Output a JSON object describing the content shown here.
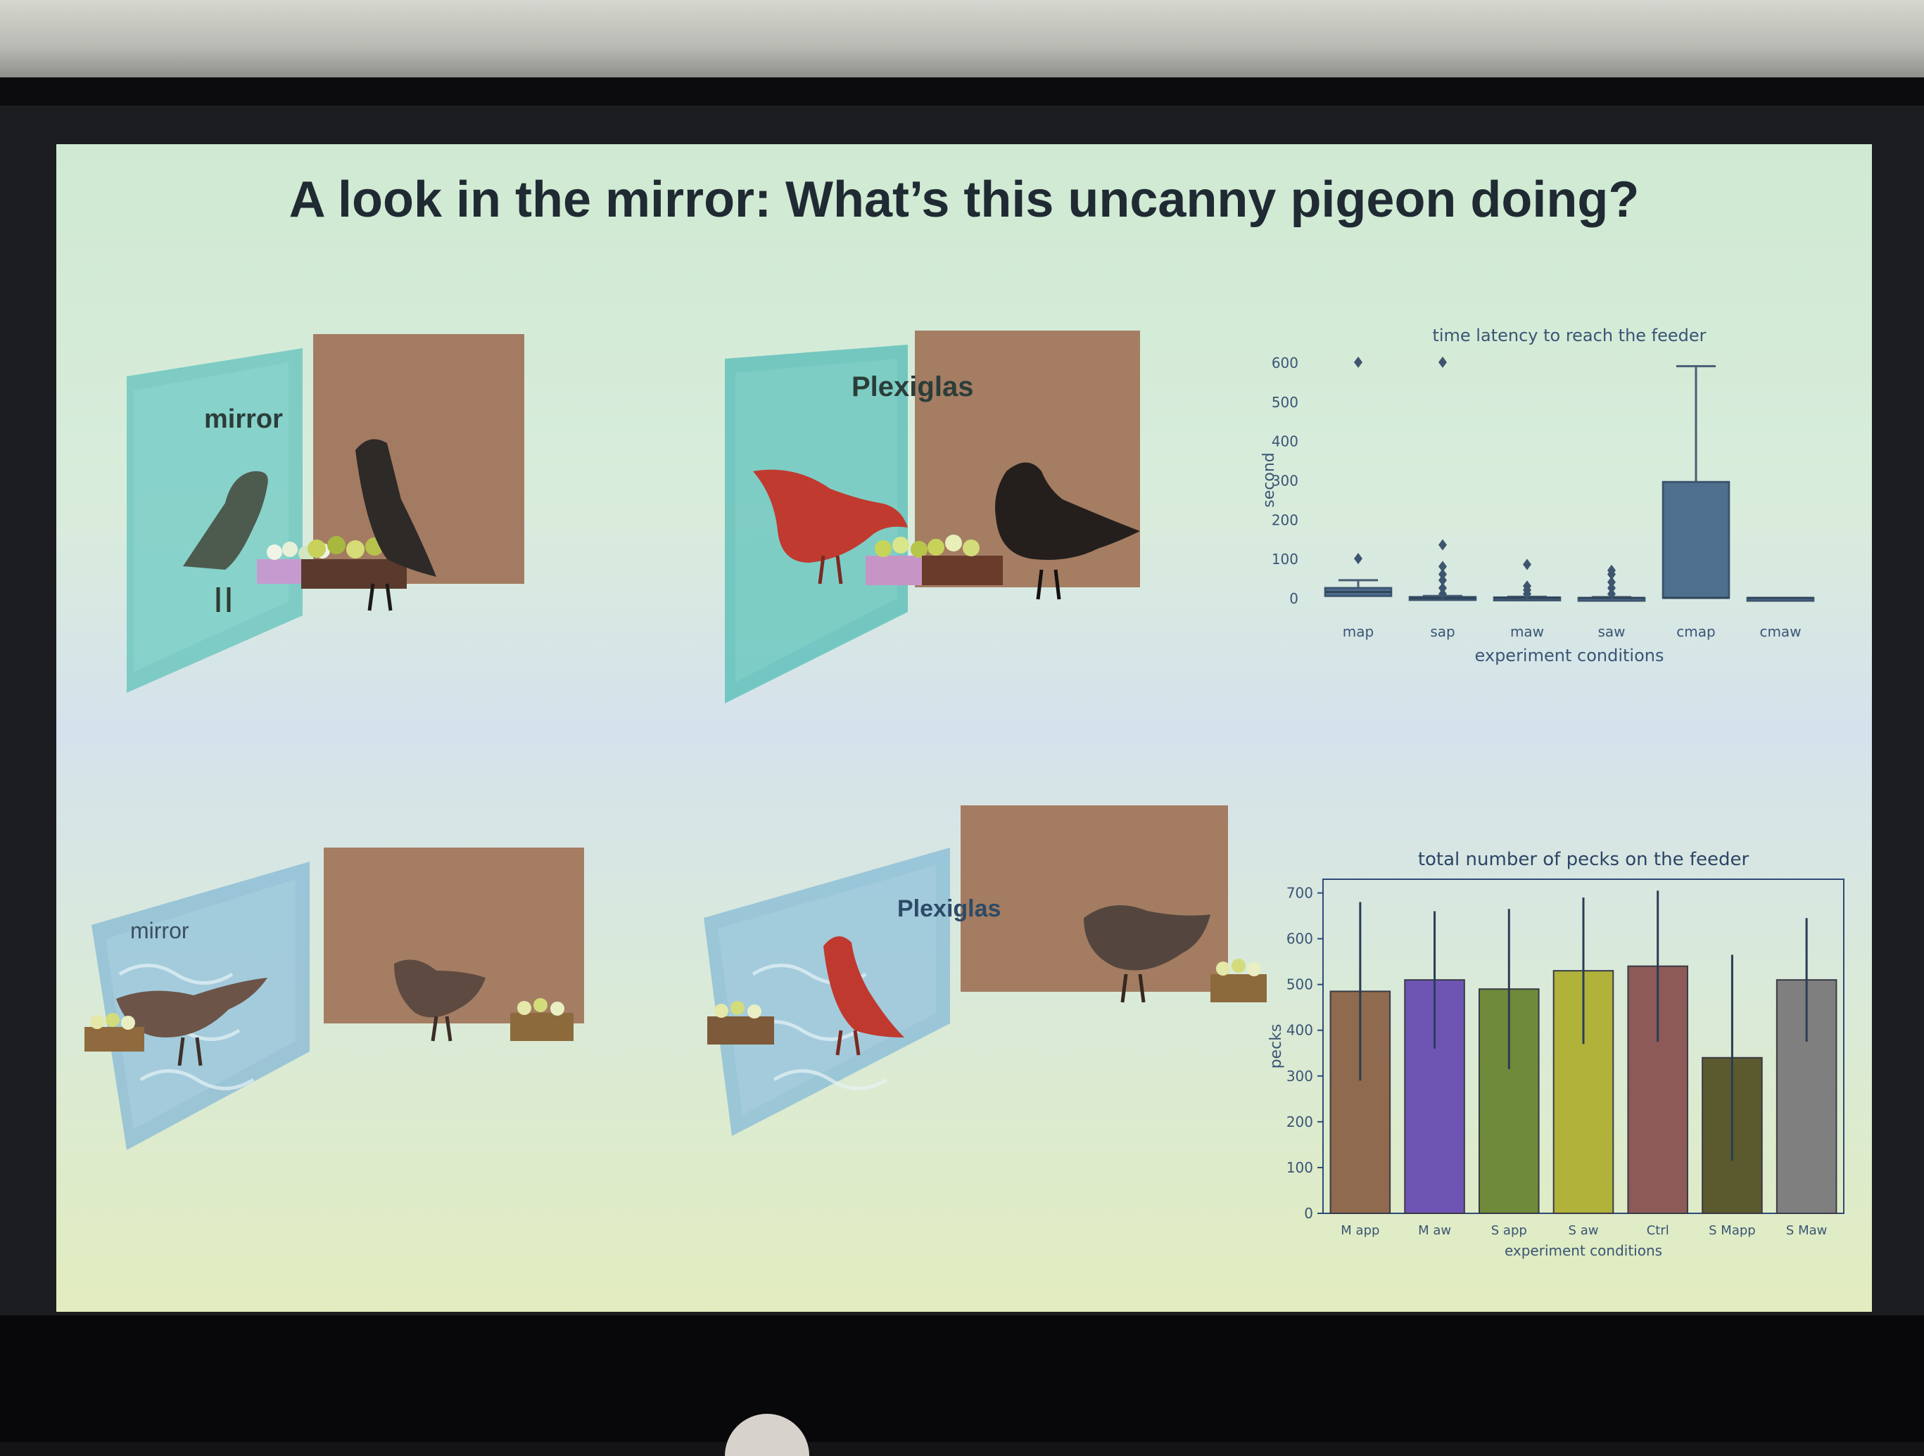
{
  "slide": {
    "title": "A look in the mirror: What’s this uncanny pigeon doing?",
    "scenes": [
      {
        "label": "mirror",
        "condition": "mirror, feeder at the wall"
      },
      {
        "label": "Plexiglas",
        "condition": "plexiglas, feeder at the wall"
      },
      {
        "label": "mirror",
        "condition": "mirror, feeder away from the wall"
      },
      {
        "label": "Plexiglas",
        "condition": "plexiglas, feeder away from the wall"
      }
    ]
  },
  "chart_data": [
    {
      "type": "box",
      "title": "time latency to reach the feeder",
      "xlabel": "experiment conditions",
      "ylabel": "second",
      "ylim": [
        0,
        600
      ],
      "yticks": [
        0,
        100,
        200,
        300,
        400,
        500,
        600
      ],
      "grid": false,
      "categories": [
        "map",
        "sap",
        "maw",
        "saw",
        "cmap",
        "cmaw"
      ],
      "boxes": [
        {
          "category": "map",
          "min": 0,
          "q1": 5,
          "median": 15,
          "q3": 25,
          "max": 45,
          "outliers": [
            100,
            600
          ]
        },
        {
          "category": "sap",
          "min": 0,
          "q1": 0,
          "median": 0,
          "q3": 2,
          "max": 5,
          "outliers": [
            10,
            25,
            45,
            60,
            80,
            135,
            600
          ]
        },
        {
          "category": "maw",
          "min": 0,
          "q1": 0,
          "median": 0,
          "q3": 1,
          "max": 3,
          "outliers": [
            10,
            20,
            30,
            85
          ]
        },
        {
          "category": "saw",
          "min": 0,
          "q1": 0,
          "median": 0,
          "q3": 0,
          "max": 2,
          "outliers": [
            10,
            25,
            40,
            60,
            70
          ]
        },
        {
          "category": "cmap",
          "min": 0,
          "q1": 0,
          "median": 0,
          "q3": 295,
          "max": 590,
          "outliers": []
        },
        {
          "category": "cmaw",
          "min": 0,
          "q1": 0,
          "median": 0,
          "q3": 0,
          "max": 0,
          "outliers": []
        }
      ],
      "color": "#4f6f8f"
    },
    {
      "type": "bar",
      "title": "total number of pecks on the feeder",
      "xlabel": "experiment conditions",
      "ylabel": "pecks",
      "ylim": [
        0,
        730
      ],
      "yticks": [
        0,
        100,
        200,
        300,
        400,
        500,
        600,
        700
      ],
      "grid": false,
      "categories": [
        "M app",
        "M aw",
        "S app",
        "S aw",
        "Ctrl",
        "S Mapp",
        "S Maw"
      ],
      "values": [
        485,
        510,
        490,
        530,
        540,
        340,
        510
      ],
      "errors": [
        195,
        150,
        175,
        160,
        165,
        225,
        135
      ],
      "colors": [
        "#8f6a4e",
        "#6e55b4",
        "#6f8a3a",
        "#b0b23a",
        "#8d5a58",
        "#5a5a2e",
        "#7f7f7f"
      ]
    }
  ]
}
